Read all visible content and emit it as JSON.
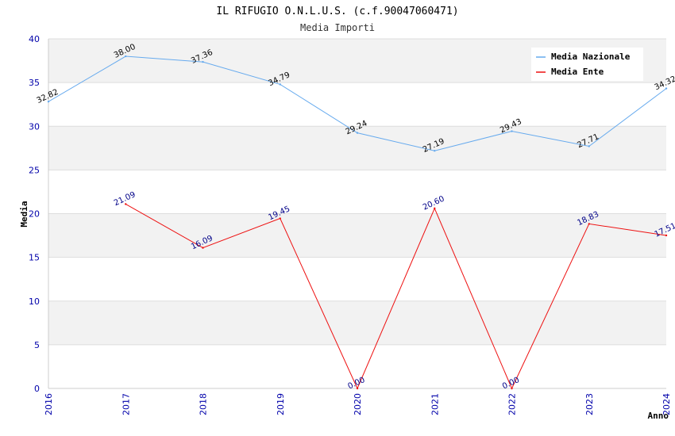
{
  "chart_data": {
    "type": "line",
    "title": "IL RIFUGIO O.N.L.U.S. (c.f.90047060471)",
    "subtitle": "Media Importi",
    "xlabel": "Anno",
    "ylabel": "Media",
    "ylim": [
      0,
      40
    ],
    "yticks": [
      "0",
      "5",
      "10",
      "15",
      "20",
      "25",
      "30",
      "35",
      "40"
    ],
    "categories": [
      "2016",
      "2017",
      "2018",
      "2019",
      "2020",
      "2021",
      "2022",
      "2023",
      "2024"
    ],
    "legend_position": "top-right",
    "series": [
      {
        "name": "Media Nazionale",
        "color": "#66aaee",
        "label_color": "#000000",
        "values": [
          32.82,
          38.0,
          37.36,
          34.79,
          29.24,
          27.19,
          29.43,
          27.71,
          34.32
        ],
        "labels": [
          "32.82",
          "38.00",
          "37.36",
          "34.79",
          "29.24",
          "27.19",
          "29.43",
          "27.71",
          "34.32"
        ]
      },
      {
        "name": "Media Ente",
        "color": "#ee1111",
        "label_color": "#000088",
        "values": [
          null,
          21.09,
          16.09,
          19.45,
          0.0,
          20.6,
          0.0,
          18.83,
          17.51
        ],
        "labels": [
          null,
          "21.09",
          "16.09",
          "19.45",
          "0.00",
          "20.60",
          "0.00",
          "18.83",
          "17.51"
        ]
      }
    ]
  }
}
